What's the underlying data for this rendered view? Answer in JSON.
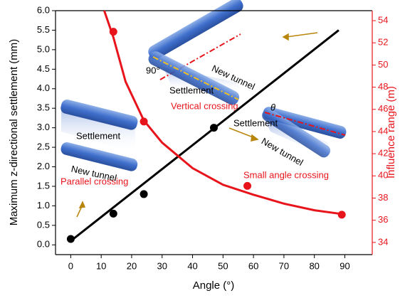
{
  "chart_data": {
    "type": "scatter-line",
    "x_label": "Angle (°)",
    "y_label": "Maximum z-directional settlement (mm)",
    "y2_label": "Influence range (m)",
    "xlim": [
      -5,
      99
    ],
    "xticks": [
      0,
      10,
      20,
      30,
      40,
      50,
      60,
      70,
      80,
      90
    ],
    "ylim": [
      -0.25,
      6.0
    ],
    "yticks": [
      {
        "value": 0,
        "label": "0.0"
      },
      {
        "value": 0.5,
        "label": "0.5"
      },
      {
        "value": 1,
        "label": "1.0"
      },
      {
        "value": 1.5,
        "label": "1.5"
      },
      {
        "value": 2,
        "label": "2.0"
      },
      {
        "value": 2.5,
        "label": "2.5"
      },
      {
        "value": 3,
        "label": "3.0"
      },
      {
        "value": 3.5,
        "label": "3.5"
      },
      {
        "value": 4,
        "label": "4.0"
      },
      {
        "value": 4.5,
        "label": "4.5"
      },
      {
        "value": 5,
        "label": "5.0"
      },
      {
        "value": 5.5,
        "label": "5.5"
      },
      {
        "value": 6,
        "label": "6.0"
      }
    ],
    "y2lim": [
      32.9,
      54.9
    ],
    "y2ticks": [
      34,
      36,
      38,
      40,
      42,
      44,
      46,
      48,
      50,
      52,
      54
    ],
    "y2color": "#e8141b",
    "series": [
      {
        "mode": "markers",
        "color": "#000000",
        "x": [
          0,
          14,
          24,
          47
        ],
        "values": [
          0.15,
          0.8,
          1.3,
          3.0
        ]
      },
      {
        "mode": "line",
        "color": "#000000",
        "x": [
          0,
          88
        ],
        "values": [
          0.1,
          5.5
        ]
      },
      {
        "mode": "markers",
        "color": "#e8141b",
        "axis": "y2",
        "x": [
          14,
          24,
          58,
          89
        ],
        "values": [
          53.0,
          44.9,
          39.1,
          36.5
        ]
      },
      {
        "mode": "line",
        "color": "#e8141b",
        "axis": "y2",
        "x": [
          11,
          14,
          18,
          24,
          30,
          40,
          50,
          60,
          70,
          80,
          88
        ],
        "values": [
          54.9,
          52.5,
          48.5,
          45.0,
          43.0,
          40.7,
          39.2,
          38.3,
          37.5,
          36.9,
          36.6
        ]
      }
    ],
    "annotations": [
      "Parallel crossing",
      "Vertical crossing",
      "Small angle crossing",
      "Settlement",
      "New tunnel",
      "90°",
      "Settlement",
      "New tunnel",
      "θ",
      "Settlement",
      "New tunnel"
    ]
  }
}
